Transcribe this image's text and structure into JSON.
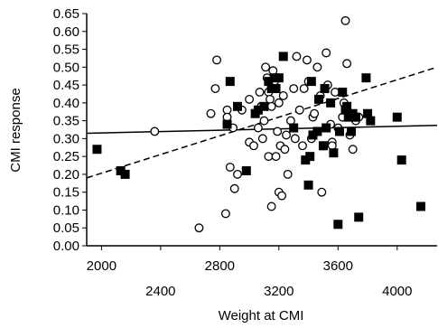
{
  "chart_data": {
    "type": "scatter",
    "xlabel": "Weight at CMI",
    "ylabel": "CMI response",
    "xlim": [
      1900,
      4270
    ],
    "ylim": [
      0.0,
      0.65
    ],
    "x_ticks_upper": [
      2000,
      2800,
      3600
    ],
    "x_ticks_lower": [
      2400,
      3200,
      4000
    ],
    "y_ticks": [
      "0.00",
      "0.05",
      "0.10",
      "0.15",
      "0.20",
      "0.25",
      "0.30",
      "0.35",
      "0.40",
      "0.45",
      "0.50",
      "0.55",
      "0.60",
      "0.65"
    ],
    "grid": false,
    "legend": "none",
    "series": [
      {
        "marker": "open-circle",
        "color": "#000000",
        "points": [
          [
            2360,
            0.32
          ],
          [
            2660,
            0.05
          ],
          [
            2740,
            0.37
          ],
          [
            2770,
            0.44
          ],
          [
            2780,
            0.52
          ],
          [
            2840,
            0.09
          ],
          [
            2850,
            0.38
          ],
          [
            2850,
            0.36
          ],
          [
            2870,
            0.22
          ],
          [
            2890,
            0.33
          ],
          [
            2900,
            0.16
          ],
          [
            2920,
            0.2
          ],
          [
            2950,
            0.38
          ],
          [
            2980,
            0.21
          ],
          [
            3000,
            0.41
          ],
          [
            3000,
            0.29
          ],
          [
            3030,
            0.28
          ],
          [
            3060,
            0.33
          ],
          [
            3070,
            0.43
          ],
          [
            3080,
            0.39
          ],
          [
            3090,
            0.3
          ],
          [
            3100,
            0.35
          ],
          [
            3110,
            0.5
          ],
          [
            3120,
            0.47
          ],
          [
            3130,
            0.25
          ],
          [
            3130,
            0.43
          ],
          [
            3140,
            0.41
          ],
          [
            3150,
            0.11
          ],
          [
            3150,
            0.39
          ],
          [
            3160,
            0.49
          ],
          [
            3170,
            0.46
          ],
          [
            3180,
            0.25
          ],
          [
            3190,
            0.32
          ],
          [
            3200,
            0.4
          ],
          [
            3200,
            0.15
          ],
          [
            3210,
            0.28
          ],
          [
            3220,
            0.14
          ],
          [
            3230,
            0.42
          ],
          [
            3240,
            0.27
          ],
          [
            3250,
            0.31
          ],
          [
            3260,
            0.2
          ],
          [
            3280,
            0.35
          ],
          [
            3300,
            0.44
          ],
          [
            3310,
            0.3
          ],
          [
            3320,
            0.53
          ],
          [
            3340,
            0.38
          ],
          [
            3360,
            0.28
          ],
          [
            3370,
            0.44
          ],
          [
            3390,
            0.52
          ],
          [
            3400,
            0.46
          ],
          [
            3420,
            0.3
          ],
          [
            3430,
            0.36
          ],
          [
            3440,
            0.37
          ],
          [
            3460,
            0.5
          ],
          [
            3480,
            0.42
          ],
          [
            3490,
            0.15
          ],
          [
            3500,
            0.28
          ],
          [
            3520,
            0.54
          ],
          [
            3530,
            0.45
          ],
          [
            3550,
            0.34
          ],
          [
            3560,
            0.29
          ],
          [
            3560,
            0.28
          ],
          [
            3580,
            0.43
          ],
          [
            3600,
            0.33
          ],
          [
            3630,
            0.36
          ],
          [
            3640,
            0.4
          ],
          [
            3650,
            0.63
          ],
          [
            3660,
            0.51
          ],
          [
            3680,
            0.31
          ],
          [
            3700,
            0.27
          ],
          [
            3720,
            0.35
          ],
          [
            3740,
            0.36
          ]
        ]
      },
      {
        "marker": "filled-square",
        "color": "#000000",
        "points": [
          [
            1970,
            0.27
          ],
          [
            2130,
            0.21
          ],
          [
            2160,
            0.2
          ],
          [
            2850,
            0.34
          ],
          [
            2870,
            0.46
          ],
          [
            2920,
            0.39
          ],
          [
            2980,
            0.21
          ],
          [
            3040,
            0.37
          ],
          [
            3060,
            0.38
          ],
          [
            3100,
            0.39
          ],
          [
            3130,
            0.46
          ],
          [
            3150,
            0.44
          ],
          [
            3170,
            0.47
          ],
          [
            3180,
            0.44
          ],
          [
            3200,
            0.47
          ],
          [
            3230,
            0.53
          ],
          [
            3300,
            0.33
          ],
          [
            3380,
            0.24
          ],
          [
            3400,
            0.17
          ],
          [
            3410,
            0.25
          ],
          [
            3420,
            0.46
          ],
          [
            3430,
            0.31
          ],
          [
            3460,
            0.32
          ],
          [
            3470,
            0.41
          ],
          [
            3500,
            0.28
          ],
          [
            3510,
            0.44
          ],
          [
            3520,
            0.33
          ],
          [
            3550,
            0.4
          ],
          [
            3570,
            0.26
          ],
          [
            3600,
            0.06
          ],
          [
            3610,
            0.32
          ],
          [
            3630,
            0.43
          ],
          [
            3650,
            0.38
          ],
          [
            3660,
            0.39
          ],
          [
            3670,
            0.36
          ],
          [
            3690,
            0.32
          ],
          [
            3700,
            0.37
          ],
          [
            3720,
            0.36
          ],
          [
            3740,
            0.08
          ],
          [
            3790,
            0.47
          ],
          [
            3800,
            0.37
          ],
          [
            3820,
            0.35
          ],
          [
            4000,
            0.36
          ],
          [
            4030,
            0.24
          ],
          [
            4160,
            0.11
          ]
        ]
      }
    ],
    "trend_lines": [
      {
        "style": "solid",
        "points": [
          [
            1900,
            0.315
          ],
          [
            4270,
            0.337
          ]
        ]
      },
      {
        "style": "dashed",
        "points": [
          [
            1900,
            0.19
          ],
          [
            4270,
            0.5
          ]
        ]
      }
    ]
  }
}
